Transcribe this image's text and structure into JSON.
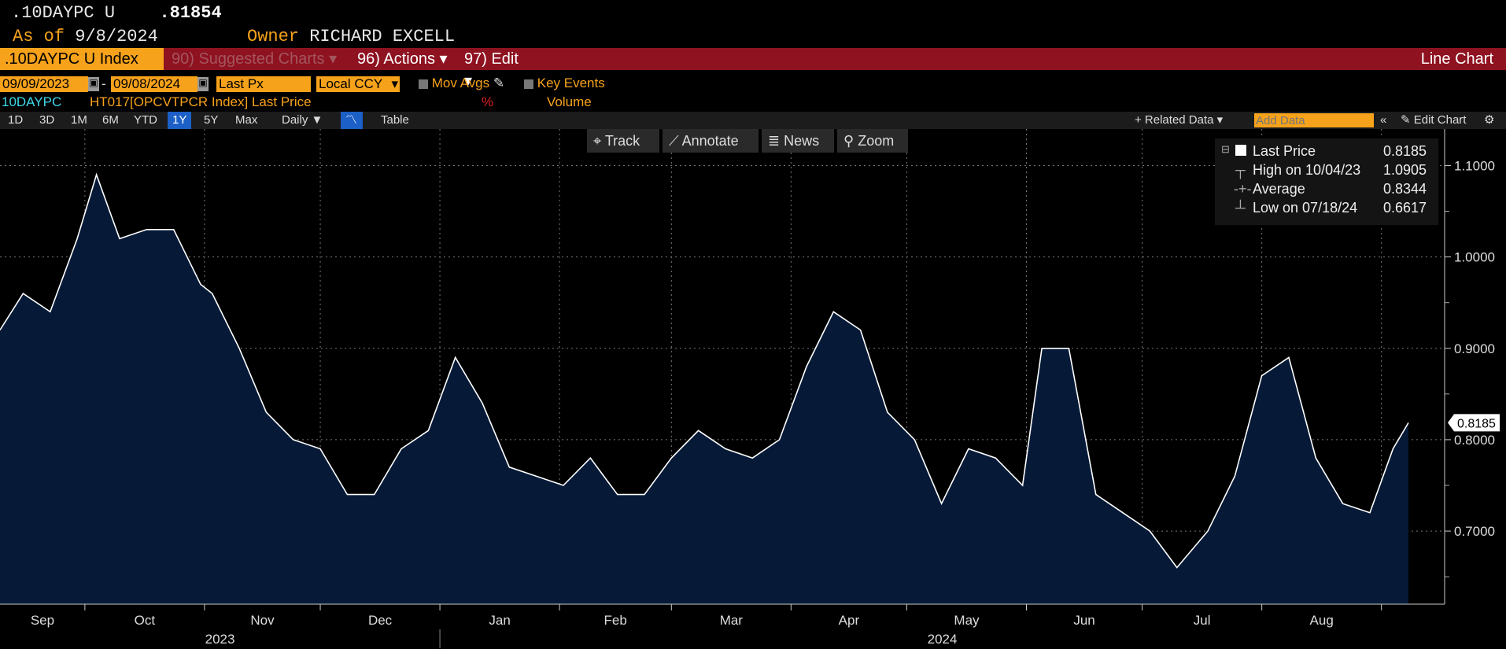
{
  "header": {
    "ticker": ".10DAYPC U",
    "value": ".81854",
    "asof_label": "As of",
    "asof_date": "9/8/2024",
    "owner_label": "Owner",
    "owner_name": "RICHARD EXCELL"
  },
  "menubar": {
    "security": ".10DAYPC U Index",
    "suggested": "90) Suggested Charts",
    "actions": "96) Actions",
    "edit": "97) Edit",
    "view": "Line Chart"
  },
  "controls": {
    "start_date": "09/09/2023",
    "dash": "-",
    "end_date": "09/08/2024",
    "field": "Last Px",
    "currency": "Local CCY",
    "mov_avgs": "Mov Avgs",
    "key_events": "Key Events"
  },
  "series_line": {
    "name": "10DAYPC",
    "desc": "HT017[OPCVTPCR Index] Last Price",
    "pct": "%",
    "volume": "Volume"
  },
  "periods": [
    "1D",
    "3D",
    "1M",
    "6M",
    "YTD",
    "1Y",
    "5Y",
    "Max"
  ],
  "selected_period": "1Y",
  "frequency": "Daily",
  "table_label": "Table",
  "related_data": "+ Related Data",
  "add_data_placeholder": "Add Data",
  "edit_chart": "Edit Chart",
  "chart_tools": {
    "track": "Track",
    "annotate": "Annotate",
    "news": "News",
    "zoom": "Zoom"
  },
  "legend": {
    "last_label": "Last Price",
    "last_value": "0.8185",
    "high_label": "High on 10/04/23",
    "high_value": "1.0905",
    "avg_label": "Average",
    "avg_value": "0.8344",
    "low_label": "Low on 07/18/24",
    "low_value": "0.6617"
  },
  "colors": {
    "accent": "#f7a21b",
    "menubar": "#8e1220",
    "area_fill": "#061a38",
    "line": "#ffffff"
  },
  "chart_data": {
    "type": "area",
    "x_unit": "date",
    "ylim": [
      0.62,
      1.14
    ],
    "yticks": [
      "1.1000",
      "1.0000",
      "0.9000",
      "0.8000",
      "0.7000"
    ],
    "last_value_label": "0.8185",
    "months": [
      "Sep",
      "Oct",
      "Nov",
      "Dec",
      "Jan",
      "Feb",
      "Mar",
      "Apr",
      "May",
      "Jun",
      "Jul",
      "Aug"
    ],
    "years": [
      "2023",
      "2024"
    ],
    "x": [
      "2023-09-09",
      "2023-09-15",
      "2023-09-22",
      "2023-09-29",
      "2023-10-04",
      "2023-10-10",
      "2023-10-17",
      "2023-10-24",
      "2023-10-31",
      "2023-11-03",
      "2023-11-10",
      "2023-11-17",
      "2023-11-24",
      "2023-12-01",
      "2023-12-08",
      "2023-12-15",
      "2023-12-22",
      "2023-12-29",
      "2024-01-05",
      "2024-01-12",
      "2024-01-19",
      "2024-01-26",
      "2024-02-02",
      "2024-02-09",
      "2024-02-16",
      "2024-02-23",
      "2024-03-01",
      "2024-03-08",
      "2024-03-15",
      "2024-03-22",
      "2024-03-29",
      "2024-04-05",
      "2024-04-12",
      "2024-04-19",
      "2024-04-26",
      "2024-05-03",
      "2024-05-10",
      "2024-05-17",
      "2024-05-24",
      "2024-05-31",
      "2024-06-05",
      "2024-06-12",
      "2024-06-19",
      "2024-06-26",
      "2024-07-03",
      "2024-07-10",
      "2024-07-18",
      "2024-07-25",
      "2024-08-01",
      "2024-08-08",
      "2024-08-15",
      "2024-08-22",
      "2024-08-29",
      "2024-09-04",
      "2024-09-08"
    ],
    "y": [
      0.92,
      0.96,
      0.94,
      1.02,
      1.09,
      1.02,
      1.03,
      1.03,
      0.97,
      0.96,
      0.9,
      0.83,
      0.8,
      0.79,
      0.74,
      0.74,
      0.79,
      0.81,
      0.89,
      0.84,
      0.77,
      0.76,
      0.75,
      0.78,
      0.74,
      0.74,
      0.78,
      0.81,
      0.79,
      0.78,
      0.8,
      0.88,
      0.94,
      0.92,
      0.83,
      0.8,
      0.73,
      0.79,
      0.78,
      0.75,
      0.9,
      0.9,
      0.74,
      0.72,
      0.7,
      0.66,
      0.7,
      0.76,
      0.87,
      0.89,
      0.78,
      0.73,
      0.72,
      0.79,
      0.8185
    ]
  }
}
